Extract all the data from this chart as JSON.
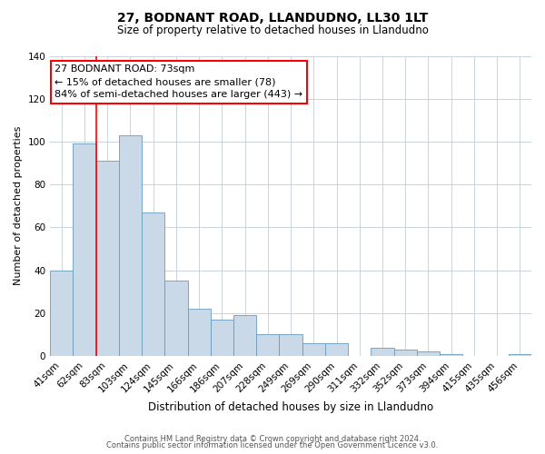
{
  "title": "27, BODNANT ROAD, LLANDUDNO, LL30 1LT",
  "subtitle": "Size of property relative to detached houses in Llandudno",
  "xlabel": "Distribution of detached houses by size in Llandudno",
  "ylabel": "Number of detached properties",
  "bar_labels": [
    "41sqm",
    "62sqm",
    "83sqm",
    "103sqm",
    "124sqm",
    "145sqm",
    "166sqm",
    "186sqm",
    "207sqm",
    "228sqm",
    "249sqm",
    "269sqm",
    "290sqm",
    "311sqm",
    "332sqm",
    "352sqm",
    "373sqm",
    "394sqm",
    "415sqm",
    "435sqm",
    "456sqm"
  ],
  "bar_values": [
    40,
    99,
    91,
    103,
    67,
    35,
    22,
    17,
    19,
    10,
    10,
    6,
    6,
    0,
    4,
    3,
    2,
    1,
    0,
    0,
    1
  ],
  "bar_color": "#c9d9e8",
  "bar_edgecolor": "#6a9cbd",
  "ylim": [
    0,
    140
  ],
  "yticks": [
    0,
    20,
    40,
    60,
    80,
    100,
    120,
    140
  ],
  "red_line_x": 1.5,
  "annotation_line1": "27 BODNANT ROAD: 73sqm",
  "annotation_line2": "← 15% of detached houses are smaller (78)",
  "annotation_line3": "84% of semi-detached houses are larger (443) →",
  "footer_line1": "Contains HM Land Registry data © Crown copyright and database right 2024.",
  "footer_line2": "Contains public sector information licensed under the Open Government Licence v3.0.",
  "background_color": "#ffffff",
  "grid_color": "#c8d4de",
  "title_fontsize": 10,
  "subtitle_fontsize": 8.5,
  "xlabel_fontsize": 8.5,
  "ylabel_fontsize": 8.0,
  "tick_fontsize": 7.5,
  "footer_fontsize": 6.0
}
